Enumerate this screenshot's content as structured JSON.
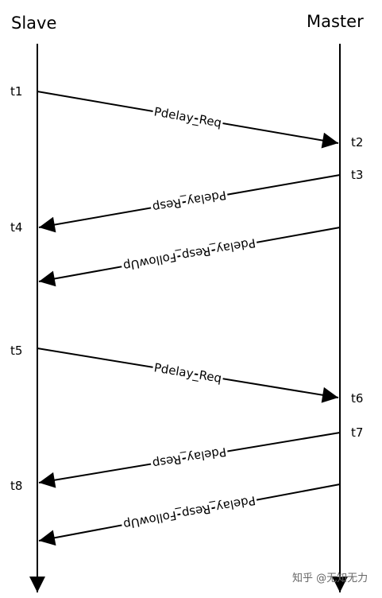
{
  "lanes": {
    "left": "Slave",
    "right": "Master"
  },
  "times": [
    "t1",
    "t2",
    "t3",
    "t4",
    "t5",
    "t6",
    "t7",
    "t8"
  ],
  "messages": [
    {
      "label": "Pdelay_Req"
    },
    {
      "label": "Pdelay_Resp"
    },
    {
      "label": "Pdelay_Resp_FollowUp"
    },
    {
      "label": "Pdelay_Req"
    },
    {
      "label": "Pdelay_Resp"
    },
    {
      "label": "Pdelay_Resp_FollowUp"
    }
  ],
  "watermark": "知乎 @无知无力"
}
